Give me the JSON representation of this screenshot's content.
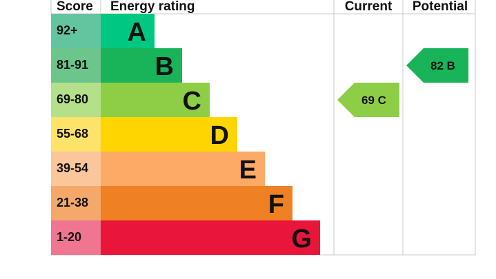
{
  "chart_data": {
    "type": "bar",
    "headers": {
      "score": "Score",
      "energy_rating": "Energy rating",
      "current": "Current",
      "potential": "Potential"
    },
    "bands": [
      {
        "score": "92+",
        "letter": "A",
        "bar_color": "#00c781",
        "score_color": "#63c5a0"
      },
      {
        "score": "81-91",
        "letter": "B",
        "bar_color": "#19b459",
        "score_color": "#6cc68c"
      },
      {
        "score": "69-80",
        "letter": "C",
        "bar_color": "#8dce46",
        "score_color": "#b5e08a"
      },
      {
        "score": "55-68",
        "letter": "D",
        "bar_color": "#ffd500",
        "score_color": "#fde36a"
      },
      {
        "score": "39-54",
        "letter": "E",
        "bar_color": "#fcaa65",
        "score_color": "#fcc69c"
      },
      {
        "score": "21-38",
        "letter": "F",
        "bar_color": "#ef8023",
        "score_color": "#f4a96a"
      },
      {
        "score": "1-20",
        "letter": "G",
        "bar_color": "#e9153b",
        "score_color": "#f07590"
      }
    ],
    "current": {
      "value": 69,
      "letter": "C",
      "color": "#8dce46"
    },
    "potential": {
      "value": 82,
      "letter": "B",
      "color": "#19b459"
    }
  }
}
